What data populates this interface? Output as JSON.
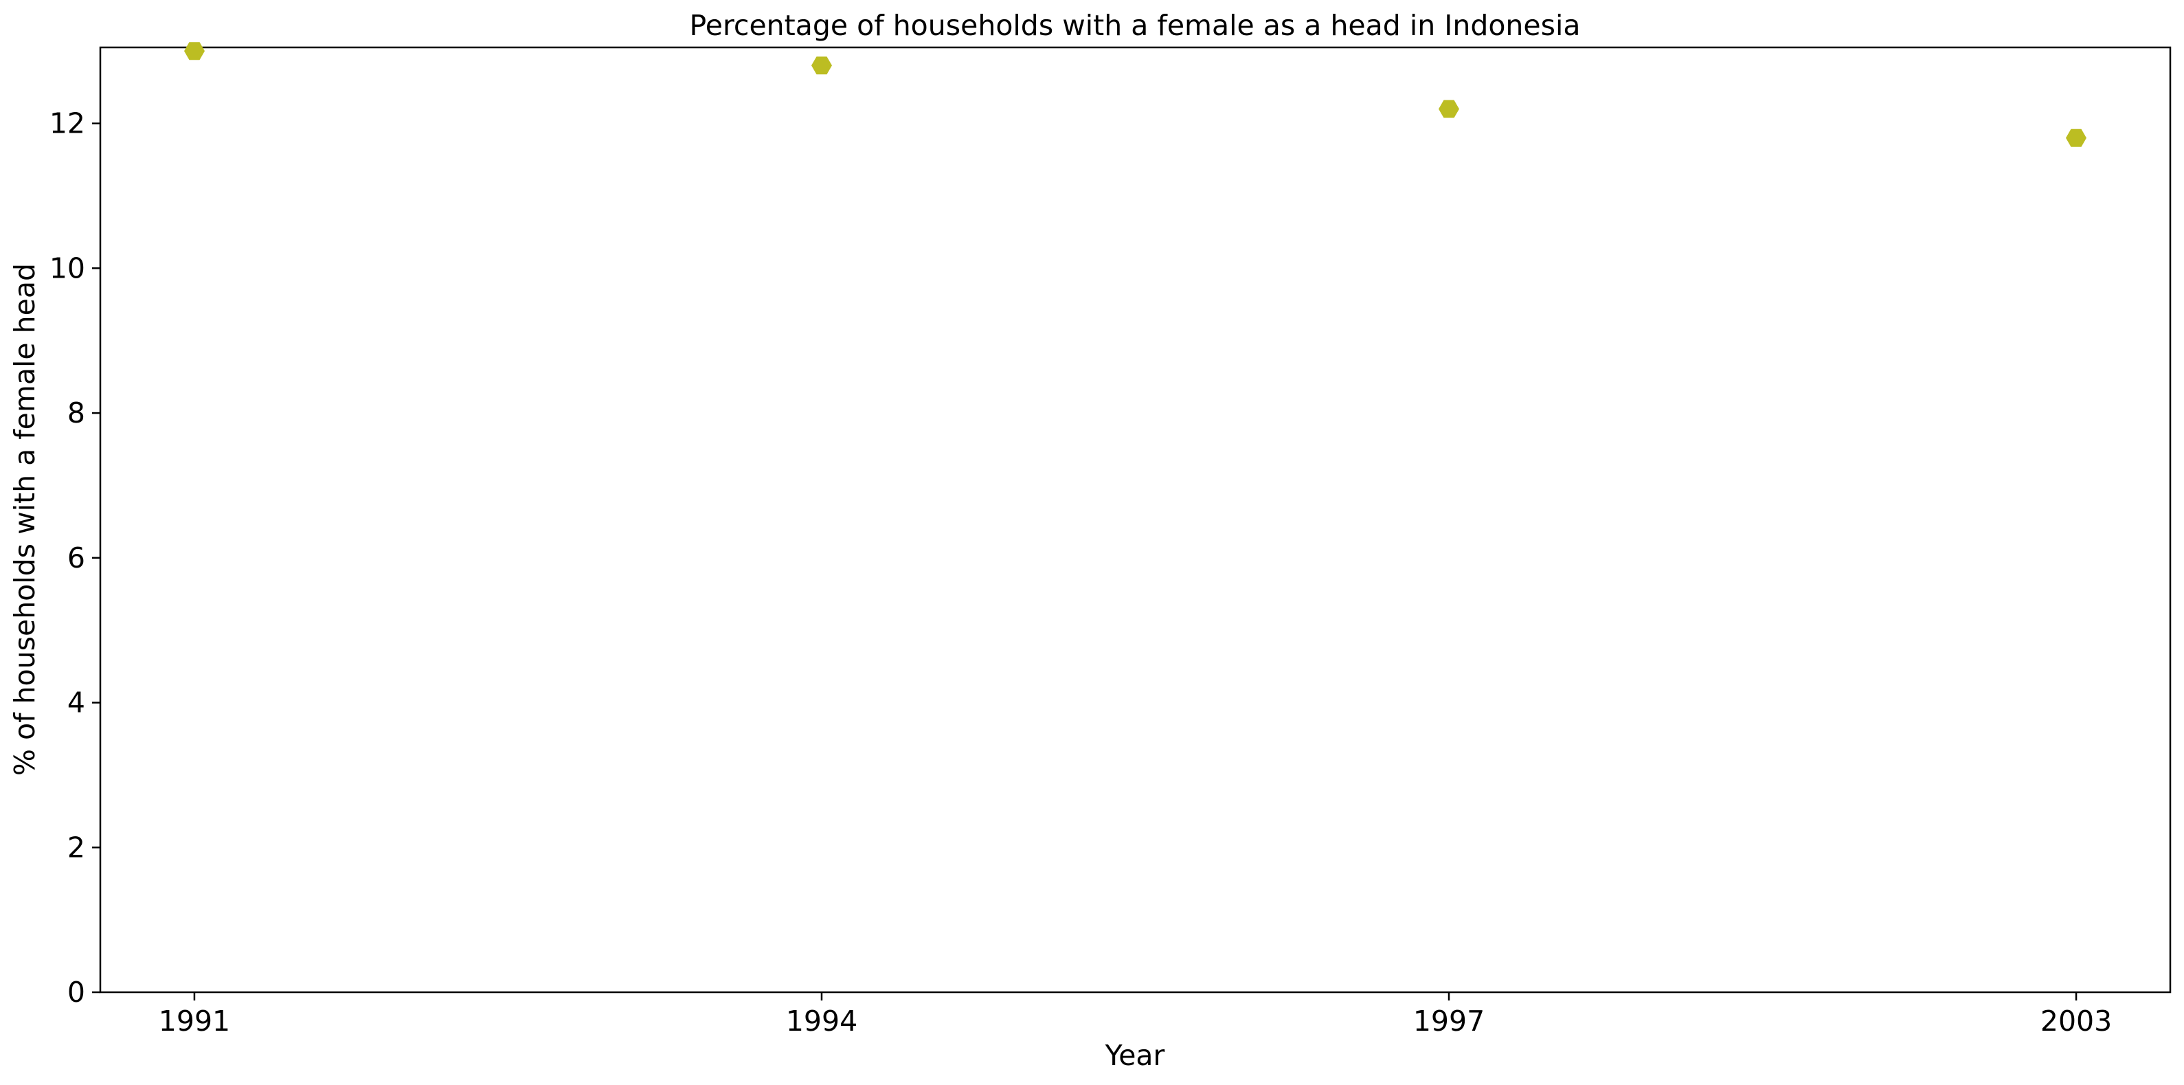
{
  "chart_data": {
    "type": "scatter",
    "title": "Percentage of households with a female as a head in Indonesia",
    "xlabel": "Year",
    "ylabel": "% of households with a female head",
    "categories": [
      "1991",
      "1994",
      "1997",
      "2003"
    ],
    "series": [
      {
        "values": [
          13.0,
          12.8,
          12.2,
          11.8
        ],
        "color": "#bcbd22",
        "marker": "hexagon"
      }
    ],
    "yticks": [
      0,
      2,
      4,
      6,
      8,
      10,
      12
    ],
    "ylim": [
      0,
      13.05
    ],
    "grid": false,
    "legend": "none"
  }
}
